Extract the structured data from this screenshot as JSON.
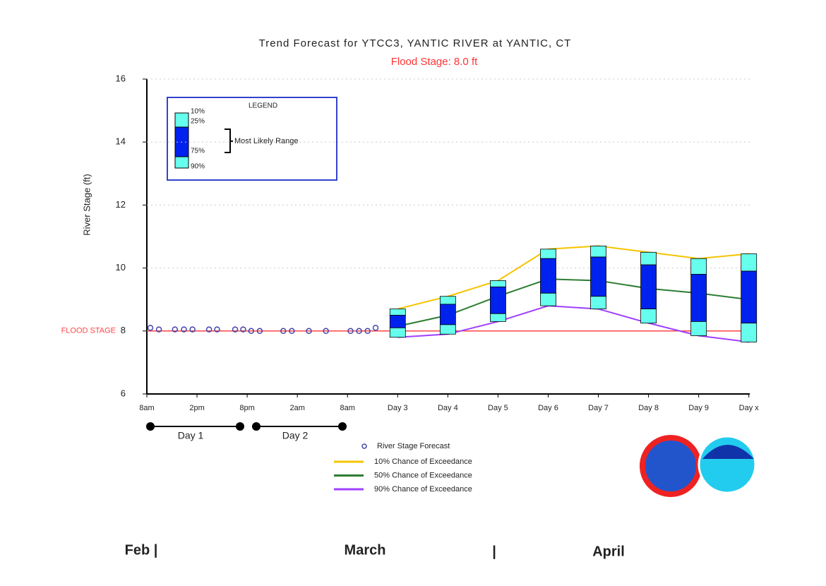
{
  "chart_data": {
    "type": "trend",
    "title": "Trend Forecast for YTCC3, YANTIC RIVER at YANTIC, CT",
    "subtitle": "Flood Stage: 8.0 ft",
    "y_label": "River Stage (ft)",
    "ylim": [
      6,
      16
    ],
    "yticks": [
      6,
      8,
      10,
      12,
      14,
      16
    ],
    "grid": true,
    "categories": [
      "8am",
      "2pm",
      "8pm",
      "2am",
      "8am",
      "Day 3",
      "Day 4",
      "Day 5",
      "Day 6",
      "Day 7",
      "Day 8",
      "Day 9",
      "Day x"
    ],
    "flood_stage": 8,
    "flood_stage_label": "FLOOD STAGE",
    "flood_color": "#ff4444",
    "observed": {
      "name": "River Stage Forecast",
      "color": "#4444aa",
      "x": [
        0.07,
        0.24,
        0.56,
        0.74,
        0.91,
        1.24,
        1.4,
        1.76,
        1.92,
        2.08,
        2.25,
        2.72,
        2.89,
        3.23,
        3.57,
        4.06,
        4.23,
        4.4,
        4.56
      ],
      "values": [
        8.1,
        8.05,
        8.05,
        8.05,
        8.05,
        8.05,
        8.05,
        8.05,
        8.05,
        8.0,
        8.0,
        8.0,
        8.0,
        8.0,
        8.0,
        8.0,
        8.0,
        8.0,
        8.1
      ]
    },
    "series": [
      {
        "name": "10% Chance of Exceedance",
        "color": "#f5c400",
        "values": [
          null,
          null,
          null,
          null,
          null,
          8.7,
          9.1,
          9.6,
          10.6,
          10.7,
          10.5,
          10.3,
          10.45
        ]
      },
      {
        "name": "50% Chance of Exceedance",
        "color": "#2e7d32",
        "values": [
          null,
          null,
          null,
          null,
          null,
          8.15,
          8.5,
          9.1,
          9.65,
          9.6,
          9.35,
          9.2,
          9.0
        ]
      },
      {
        "name": "90% Chance of Exceedance",
        "color": "#a040ff",
        "values": [
          null,
          null,
          null,
          null,
          null,
          7.8,
          7.9,
          8.3,
          8.8,
          8.7,
          8.25,
          7.85,
          7.65
        ]
      }
    ],
    "box": {
      "outer_color": "#66ffee",
      "inner_color": "#0022ee",
      "q25": [
        null,
        null,
        null,
        null,
        null,
        8.5,
        8.85,
        9.4,
        10.3,
        10.35,
        10.1,
        9.8,
        9.9
      ],
      "q75": [
        null,
        null,
        null,
        null,
        null,
        8.1,
        8.2,
        8.55,
        9.2,
        9.1,
        8.7,
        8.3,
        8.25
      ]
    },
    "legend": {
      "title": "LEGEND",
      "labels": [
        "10%",
        "25%",
        "75%",
        "90%"
      ],
      "range_label": "Most Likely Range"
    },
    "period_labels": [
      "Day 1",
      "Day 2"
    ],
    "months": [
      "Feb |",
      "March",
      "|",
      "April"
    ]
  }
}
